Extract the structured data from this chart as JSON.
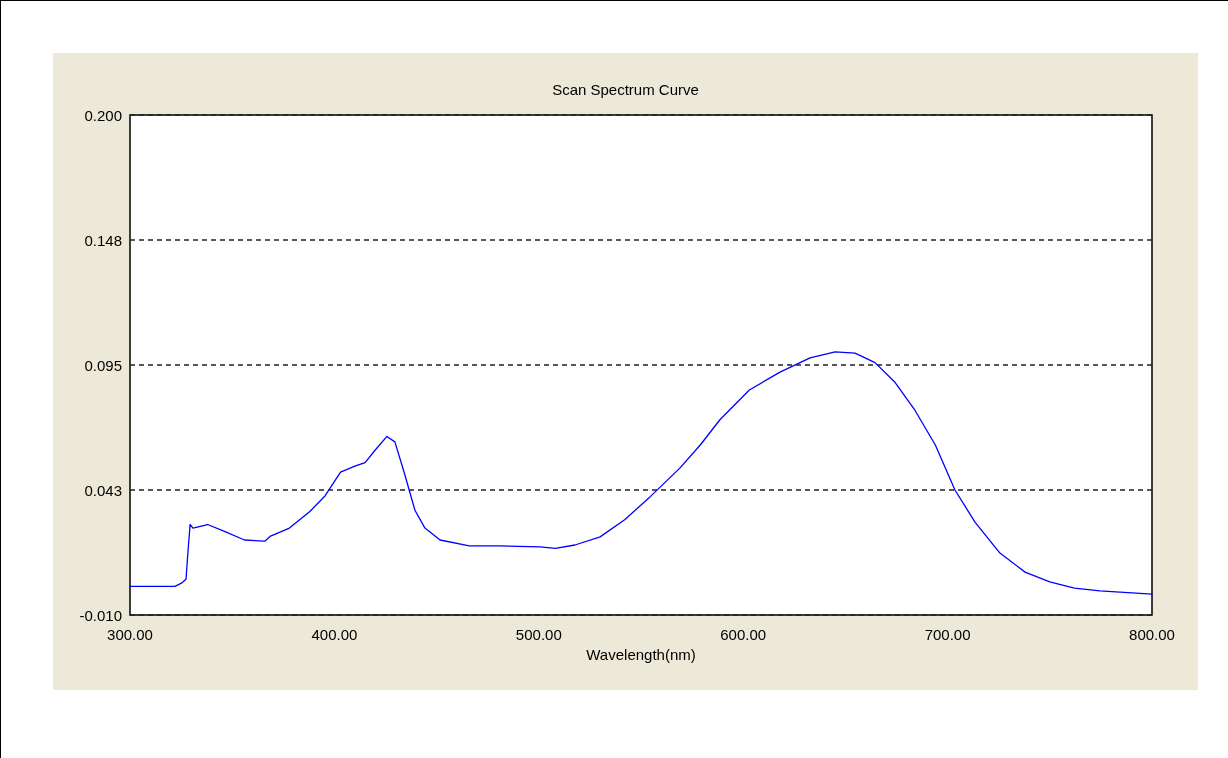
{
  "chart_data": {
    "type": "line",
    "title": "Scan Spectrum Curve",
    "xlabel": "Wavelength(nm)",
    "xlim": [
      300,
      800
    ],
    "xticks": [
      {
        "value": 300,
        "label": "300.00"
      },
      {
        "value": 400,
        "label": "400.00"
      },
      {
        "value": 500,
        "label": "500.00"
      },
      {
        "value": 600,
        "label": "600.00"
      },
      {
        "value": 700,
        "label": "700.00"
      },
      {
        "value": 800,
        "label": "800.00"
      }
    ],
    "ylim": [
      -0.01,
      0.2
    ],
    "yticks": [
      {
        "value": -0.01,
        "label": "-0.010"
      },
      {
        "value": 0.0425,
        "label": "0.043"
      },
      {
        "value": 0.095,
        "label": "0.095"
      },
      {
        "value": 0.1475,
        "label": "0.148"
      },
      {
        "value": 0.2,
        "label": "0.200"
      }
    ],
    "grid": "y",
    "marker": "none",
    "line_style": "solid",
    "series": [
      {
        "color": "#0000ff",
        "x": [
          300,
          322,
          325.4,
          327.4,
          328.4,
          329.4,
          330.8,
          338,
          346.5,
          356,
          366,
          368.5,
          378,
          388,
          395.4,
          403,
          410,
          415,
          420,
          425.7,
          429.6,
          434.5,
          439.4,
          444.3,
          451.7,
          466,
          481,
          500.6,
          508,
          517.7,
          530,
          542,
          554.4,
          569,
          579,
          588.6,
          603,
          618,
          632.7,
          645,
          654.7,
          664.5,
          674,
          684,
          694,
          703.6,
          713.4,
          725.6,
          737.9,
          750,
          762,
          774.5,
          800
        ],
        "values": [
          0.002,
          0.002,
          0.0035,
          0.005,
          0.017,
          0.028,
          0.0265,
          0.028,
          0.025,
          0.0215,
          0.021,
          0.023,
          0.0265,
          0.0335,
          0.04,
          0.05,
          0.0525,
          0.054,
          0.0593,
          0.065,
          0.0627,
          0.0488,
          0.034,
          0.0265,
          0.0215,
          0.019,
          0.019,
          0.0186,
          0.018,
          0.0194,
          0.0228,
          0.03,
          0.0396,
          0.0517,
          0.0614,
          0.072,
          0.0845,
          0.092,
          0.098,
          0.1005,
          0.1,
          0.096,
          0.088,
          0.076,
          0.0614,
          0.0425,
          0.029,
          0.016,
          0.008,
          0.0039,
          0.0013,
          0.0001,
          -0.0012
        ]
      }
    ]
  }
}
